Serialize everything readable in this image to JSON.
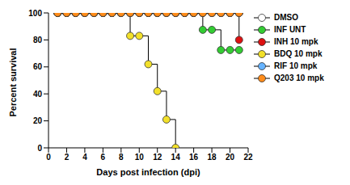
{
  "chart_data": {
    "type": "line",
    "x_label": "Days post infection (dpi)",
    "y_label": "Percent survival",
    "x": [
      1,
      2,
      3,
      4,
      5,
      6,
      7,
      8,
      9,
      10,
      11,
      12,
      13,
      14,
      15,
      16,
      17,
      18,
      19,
      20,
      21
    ],
    "series": [
      {
        "name": "DMSO",
        "color": "#ffffff",
        "values": [
          100,
          100,
          100,
          100,
          100,
          100,
          100,
          100,
          100,
          100,
          100,
          100,
          100,
          100,
          100,
          100,
          100,
          100,
          100,
          100,
          100
        ]
      },
      {
        "name": "INF UNT",
        "color": "#33cc33",
        "values": [
          100,
          100,
          100,
          100,
          100,
          100,
          100,
          100,
          100,
          100,
          100,
          100,
          100,
          100,
          100,
          100,
          87.5,
          87.5,
          72.5,
          72.5,
          72.5
        ]
      },
      {
        "name": "INH 10 mpk",
        "color": "#dd1111",
        "values": [
          100,
          100,
          100,
          100,
          100,
          100,
          100,
          100,
          100,
          100,
          100,
          100,
          100,
          100,
          100,
          100,
          100,
          100,
          100,
          100,
          80
        ]
      },
      {
        "name": "BDQ 10 mpk",
        "color": "#f2e02a",
        "values": [
          100,
          100,
          100,
          100,
          100,
          100,
          100,
          100,
          83,
          83,
          62,
          42,
          21,
          0,
          null,
          null,
          null,
          null,
          null,
          null,
          null
        ]
      },
      {
        "name": "RIF 10 mpk",
        "color": "#66b3ff",
        "values": [
          100,
          100,
          100,
          100,
          100,
          100,
          100,
          100,
          100,
          100,
          100,
          100,
          100,
          100,
          100,
          100,
          100,
          100,
          100,
          100,
          100
        ]
      },
      {
        "name": "Q203 10 mpk",
        "color": "#ff8c1a",
        "values": [
          100,
          100,
          100,
          100,
          100,
          100,
          100,
          100,
          100,
          100,
          100,
          100,
          100,
          100,
          100,
          100,
          100,
          100,
          100,
          100,
          100
        ]
      }
    ],
    "xlim": [
      0,
      22
    ],
    "xticks": [
      0,
      2,
      4,
      6,
      8,
      10,
      12,
      14,
      16,
      18,
      20,
      22
    ],
    "ylim": [
      0,
      100
    ],
    "yticks": [
      0,
      20,
      40,
      60,
      80,
      100
    ],
    "grid": false,
    "legend": "right",
    "marker": "circle",
    "line_style": "step"
  }
}
